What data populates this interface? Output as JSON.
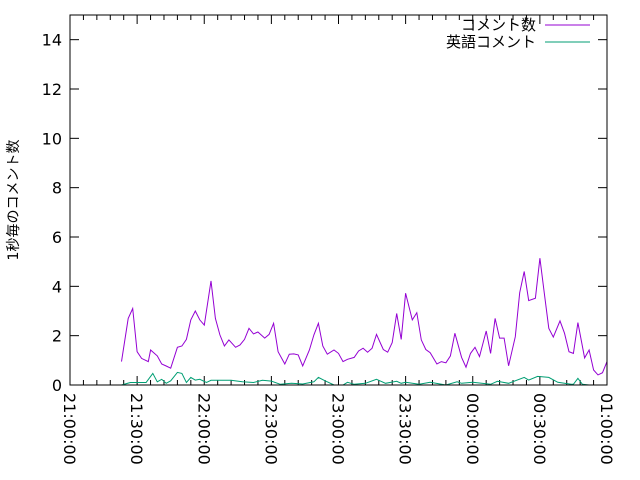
{
  "chart_data": {
    "type": "line",
    "title": "",
    "xlabel": "",
    "ylabel": "1秒毎のコメント数",
    "xlim": [
      "21:00:00",
      "01:00:00"
    ],
    "ylim": [
      0,
      15
    ],
    "xticks": [
      "21:00:00",
      "21:30:00",
      "22:00:00",
      "22:30:00",
      "23:00:00",
      "23:30:00",
      "00:00:00",
      "00:30:00",
      "01:00:00"
    ],
    "yticks": [
      "0",
      "2",
      "4",
      "6",
      "8",
      "10",
      "12",
      "14"
    ],
    "grid": false,
    "legend_position": "top-right",
    "series": [
      {
        "name": "コメント数",
        "color": "#9400d3",
        "points": [
          [
            "21:23",
            0.95
          ],
          [
            "21:26",
            2.7
          ],
          [
            "21:28",
            3.1
          ],
          [
            "21:30",
            1.35
          ],
          [
            "21:32",
            1.08
          ],
          [
            "21:35",
            0.95
          ],
          [
            "21:36",
            1.42
          ],
          [
            "21:39",
            1.18
          ],
          [
            "21:41",
            0.85
          ],
          [
            "21:43",
            0.77
          ],
          [
            "21:45",
            0.68
          ],
          [
            "21:48",
            1.53
          ],
          [
            "21:50",
            1.58
          ],
          [
            "21:52",
            1.85
          ],
          [
            "21:54",
            2.64
          ],
          [
            "21:56",
            3.0
          ],
          [
            "21:58",
            2.64
          ],
          [
            "22:00",
            2.43
          ],
          [
            "22:03",
            4.22
          ],
          [
            "22:05",
            2.7
          ],
          [
            "22:07",
            2.03
          ],
          [
            "22:09",
            1.58
          ],
          [
            "22:11",
            1.83
          ],
          [
            "22:14",
            1.53
          ],
          [
            "22:16",
            1.62
          ],
          [
            "22:18",
            1.85
          ],
          [
            "22:20",
            2.3
          ],
          [
            "22:22",
            2.07
          ],
          [
            "22:24",
            2.15
          ],
          [
            "22:27",
            1.9
          ],
          [
            "22:29",
            2.05
          ],
          [
            "22:31",
            2.5
          ],
          [
            "22:33",
            1.35
          ],
          [
            "22:36",
            0.85
          ],
          [
            "22:38",
            1.25
          ],
          [
            "22:40",
            1.26
          ],
          [
            "22:42",
            1.22
          ],
          [
            "22:44",
            0.77
          ],
          [
            "22:47",
            1.42
          ],
          [
            "22:49",
            2.03
          ],
          [
            "22:51",
            2.5
          ],
          [
            "22:53",
            1.58
          ],
          [
            "22:55",
            1.25
          ],
          [
            "22:58",
            1.42
          ],
          [
            "23:00",
            1.28
          ],
          [
            "23:02",
            0.95
          ],
          [
            "23:04",
            1.04
          ],
          [
            "23:07",
            1.12
          ],
          [
            "23:09",
            1.38
          ],
          [
            "23:11",
            1.49
          ],
          [
            "23:13",
            1.33
          ],
          [
            "23:15",
            1.49
          ],
          [
            "23:17",
            2.05
          ],
          [
            "23:20",
            1.44
          ],
          [
            "23:22",
            1.33
          ],
          [
            "23:24",
            1.72
          ],
          [
            "23:26",
            2.9
          ],
          [
            "23:28",
            1.85
          ],
          [
            "23:30",
            3.72
          ],
          [
            "23:33",
            2.64
          ],
          [
            "23:35",
            2.93
          ],
          [
            "23:37",
            1.83
          ],
          [
            "23:39",
            1.44
          ],
          [
            "23:41",
            1.31
          ],
          [
            "23:44",
            0.85
          ],
          [
            "23:46",
            0.95
          ],
          [
            "23:48",
            0.9
          ],
          [
            "23:50",
            1.18
          ],
          [
            "23:52",
            2.1
          ],
          [
            "23:55",
            1.12
          ],
          [
            "23:57",
            0.72
          ],
          [
            "23:59",
            1.28
          ],
          [
            "00:01",
            1.53
          ],
          [
            "00:03",
            1.15
          ],
          [
            "00:06",
            2.19
          ],
          [
            "00:08",
            1.28
          ],
          [
            "00:10",
            2.7
          ],
          [
            "00:12",
            1.9
          ],
          [
            "00:14",
            1.9
          ],
          [
            "00:16",
            0.78
          ],
          [
            "00:19",
            1.96
          ],
          [
            "00:21",
            3.74
          ],
          [
            "00:23",
            4.6
          ],
          [
            "00:25",
            3.42
          ],
          [
            "00:28",
            3.52
          ],
          [
            "00:30",
            5.14
          ],
          [
            "00:32",
            3.72
          ],
          [
            "00:34",
            2.3
          ],
          [
            "00:36",
            1.94
          ],
          [
            "00:39",
            2.6
          ],
          [
            "00:41",
            2.1
          ],
          [
            "00:43",
            1.35
          ],
          [
            "00:45",
            1.28
          ],
          [
            "00:47",
            2.53
          ],
          [
            "00:50",
            1.1
          ],
          [
            "00:52",
            1.42
          ],
          [
            "00:54",
            0.61
          ],
          [
            "00:56",
            0.41
          ],
          [
            "00:58",
            0.5
          ],
          [
            "01:00",
            0.95
          ]
        ]
      },
      {
        "name": "英語コメント",
        "color": "#009e73",
        "points": [
          [
            "21:23",
            0.0
          ],
          [
            "21:27",
            0.1
          ],
          [
            "21:34",
            0.1
          ],
          [
            "21:37",
            0.47
          ],
          [
            "21:39",
            0.13
          ],
          [
            "21:41",
            0.23
          ],
          [
            "21:43",
            0.07
          ],
          [
            "21:45",
            0.17
          ],
          [
            "21:48",
            0.51
          ],
          [
            "21:50",
            0.47
          ],
          [
            "21:52",
            0.1
          ],
          [
            "21:54",
            0.31
          ],
          [
            "21:56",
            0.2
          ],
          [
            "21:58",
            0.23
          ],
          [
            "22:01",
            0.1
          ],
          [
            "22:03",
            0.19
          ],
          [
            "22:12",
            0.19
          ],
          [
            "22:17",
            0.13
          ],
          [
            "22:22",
            0.1
          ],
          [
            "22:26",
            0.19
          ],
          [
            "22:30",
            0.16
          ],
          [
            "22:34",
            0.03
          ],
          [
            "22:39",
            0.07
          ],
          [
            "22:44",
            0.04
          ],
          [
            "22:49",
            0.13
          ],
          [
            "22:51",
            0.31
          ],
          [
            "22:54",
            0.17
          ],
          [
            "22:58",
            0.0
          ],
          [
            "23:02",
            0.0
          ],
          [
            "23:04",
            0.11
          ],
          [
            "23:07",
            0.03
          ],
          [
            "23:12",
            0.07
          ],
          [
            "23:17",
            0.23
          ],
          [
            "23:21",
            0.07
          ],
          [
            "23:26",
            0.15
          ],
          [
            "23:28",
            0.07
          ],
          [
            "23:30",
            0.11
          ],
          [
            "23:36",
            0.03
          ],
          [
            "23:41",
            0.11
          ],
          [
            "23:48",
            0.0
          ],
          [
            "23:53",
            0.13
          ],
          [
            "23:55",
            0.07
          ],
          [
            "00:00",
            0.11
          ],
          [
            "00:08",
            0.03
          ],
          [
            "00:11",
            0.15
          ],
          [
            "00:16",
            0.07
          ],
          [
            "00:23",
            0.31
          ],
          [
            "00:25",
            0.2
          ],
          [
            "00:29",
            0.35
          ],
          [
            "00:34",
            0.31
          ],
          [
            "00:38",
            0.11
          ],
          [
            "00:44",
            0.03
          ],
          [
            "00:45",
            0.03
          ],
          [
            "00:47",
            0.27
          ],
          [
            "00:49",
            0.03
          ],
          [
            "00:52",
            0.0
          ],
          [
            "00:58",
            0.0
          ]
        ]
      }
    ]
  }
}
